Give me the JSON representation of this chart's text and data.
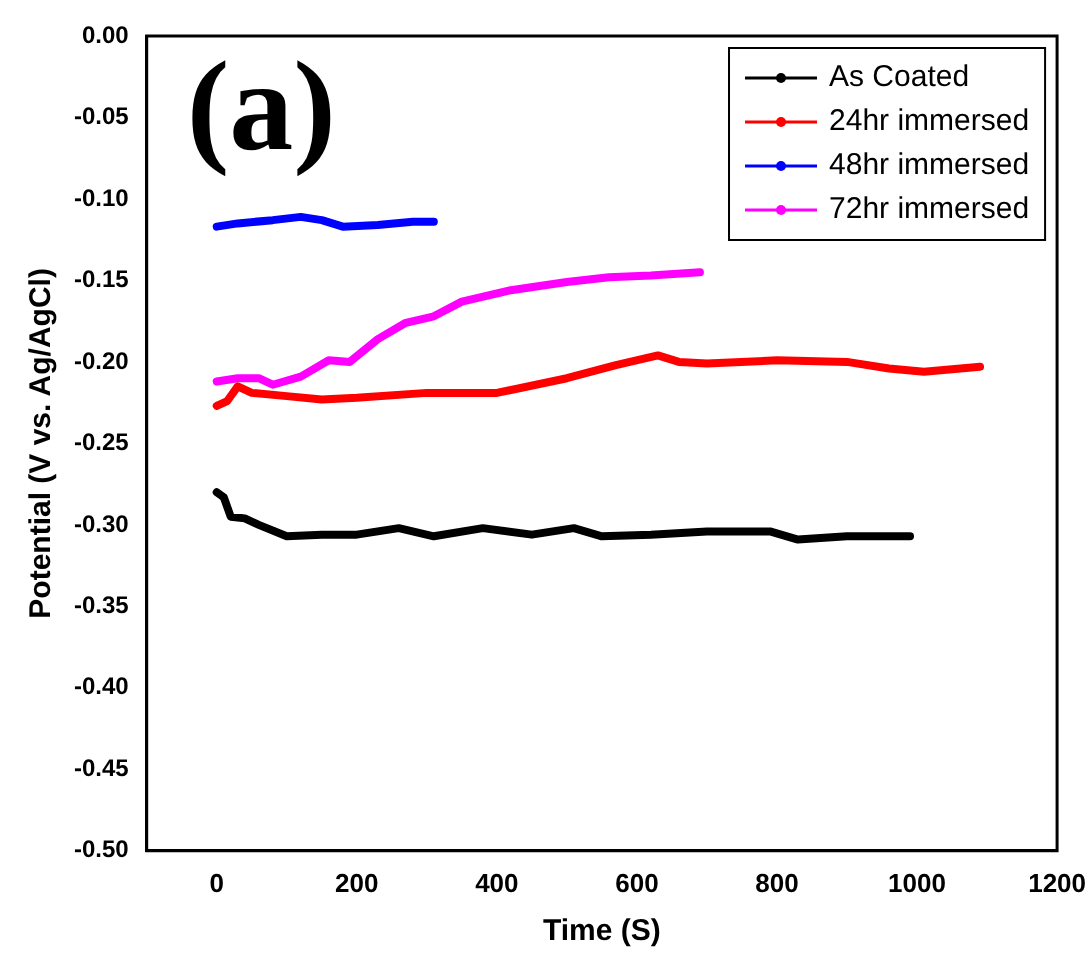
{
  "chart_data": {
    "type": "line",
    "xlabel": "Time (S)",
    "ylabel": "Potential (V vs. Ag/AgCl)",
    "annotations": [
      "(a)"
    ],
    "xlim": [
      -100,
      1200
    ],
    "xticks": [
      0,
      200,
      400,
      600,
      800,
      1000,
      1200
    ],
    "ylim": [
      -0.5,
      0
    ],
    "yticks": [
      {
        "value": 0,
        "label": "0.00"
      },
      {
        "value": -0.05,
        "label": "-0.05"
      },
      {
        "value": -0.1,
        "label": "-0.10"
      },
      {
        "value": -0.15,
        "label": "-0.15"
      },
      {
        "value": -0.2,
        "label": "-0.20"
      },
      {
        "value": -0.25,
        "label": "-0.25"
      },
      {
        "value": -0.3,
        "label": "-0.30"
      },
      {
        "value": -0.35,
        "label": "-0.35"
      },
      {
        "value": -0.4,
        "label": "-0.40"
      },
      {
        "value": -0.45,
        "label": "-0.45"
      },
      {
        "value": -0.5,
        "label": "-0.50"
      }
    ],
    "grid": false,
    "legend": "top right",
    "marker": "none",
    "line_style": "solid",
    "series": [
      {
        "name": "As Coated",
        "color": "#000000",
        "x": [
          0,
          10,
          20,
          40,
          60,
          100,
          150,
          200,
          260,
          310,
          380,
          450,
          510,
          550,
          620,
          700,
          790,
          830,
          900,
          990
        ],
        "values": [
          -0.28,
          -0.283,
          -0.295,
          -0.296,
          -0.3,
          -0.307,
          -0.306,
          -0.306,
          -0.302,
          -0.307,
          -0.302,
          -0.306,
          -0.302,
          -0.307,
          -0.306,
          -0.304,
          -0.304,
          -0.309,
          -0.307,
          -0.307
        ]
      },
      {
        "name": "24hr immersed",
        "color": "#ff0000",
        "x": [
          0,
          15,
          30,
          50,
          100,
          150,
          200,
          300,
          400,
          500,
          570,
          630,
          660,
          700,
          800,
          900,
          960,
          1010,
          1090
        ],
        "values": [
          -0.227,
          -0.224,
          -0.215,
          -0.219,
          -0.221,
          -0.223,
          -0.222,
          -0.219,
          -0.219,
          -0.21,
          -0.202,
          -0.196,
          -0.2,
          -0.201,
          -0.199,
          -0.2,
          -0.204,
          -0.206,
          -0.203
        ]
      },
      {
        "name": "48hr immersed",
        "color": "#0000ff",
        "x": [
          0,
          30,
          80,
          120,
          150,
          180,
          230,
          280,
          310
        ],
        "values": [
          -0.117,
          -0.115,
          -0.113,
          -0.111,
          -0.113,
          -0.117,
          -0.116,
          -0.114,
          -0.114
        ]
      },
      {
        "name": "72hr immersed",
        "color": "#ff00ff",
        "x": [
          0,
          30,
          60,
          80,
          120,
          160,
          190,
          230,
          270,
          310,
          350,
          420,
          500,
          560,
          620,
          690
        ],
        "values": [
          -0.212,
          -0.21,
          -0.21,
          -0.214,
          -0.209,
          -0.199,
          -0.2,
          -0.186,
          -0.176,
          -0.172,
          -0.163,
          -0.156,
          -0.151,
          -0.148,
          -0.147,
          -0.145
        ]
      }
    ]
  }
}
